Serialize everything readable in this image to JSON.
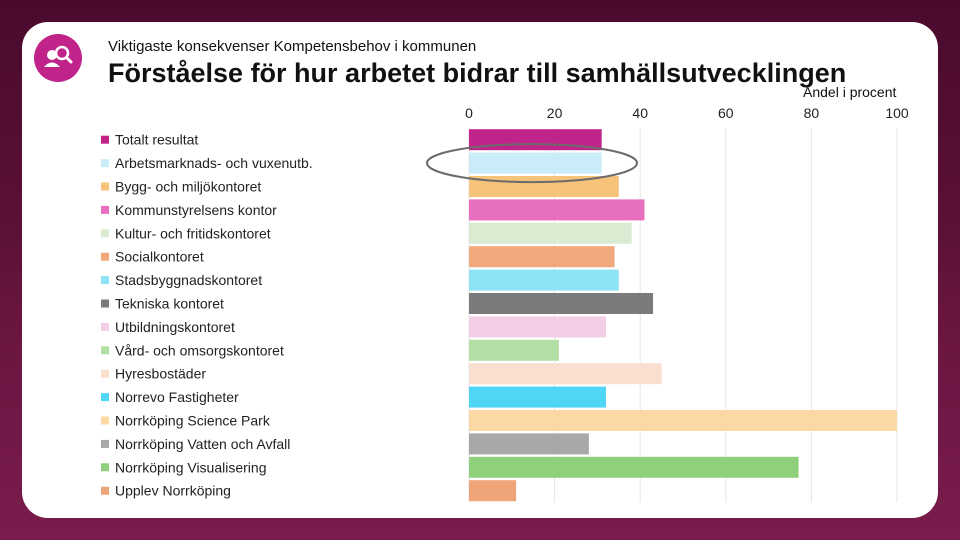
{
  "header": {
    "subtitle": "Viktigaste konsekvenser Kompetensbehov i kommunen",
    "title": "Förståelse för hur arbetet bidrar till samhällsutvecklingen",
    "logo_icon": "person-search-icon"
  },
  "colors": {
    "background": "#5a1036",
    "brand": "#c0248a"
  },
  "chart_data": {
    "type": "bar",
    "orientation": "horizontal",
    "title": "Förståelse för hur arbetet bidrar till samhällsutvecklingen",
    "xlabel": "Andel i procent",
    "ylabel": "",
    "xlim": [
      0,
      100
    ],
    "ticks": [
      0,
      20,
      40,
      60,
      80,
      100
    ],
    "grid": true,
    "legend_position": "left",
    "highlighted_category": "Arbetsmarknads- och vuxenutb.",
    "categories": [
      "Totalt resultat",
      "Arbetsmarknads- och vuxenutb.",
      "Bygg- och miljökontoret",
      "Kommunstyrelsens kontor",
      "Kultur- och fritidskontoret",
      "Socialkontoret",
      "Stadsbyggnadskontoret",
      "Tekniska kontoret",
      "Utbildningskontoret",
      "Vård- och omsorgskontoret",
      "Hyresbostäder",
      "Norrevo Fastigheter",
      "Norrköping Science Park",
      "Norrköping Vatten och Avfall",
      "Norrköping Visualisering",
      "Upplev Norrköping"
    ],
    "values": [
      31,
      31,
      35,
      41,
      38,
      34,
      35,
      43,
      32,
      21,
      45,
      32,
      100,
      28,
      77,
      11
    ],
    "colors": [
      "#c0248a",
      "#c9ecf8",
      "#f7c27a",
      "#e86fbd",
      "#d9ecd2",
      "#f1a97c",
      "#8fe3f7",
      "#7b7b7b",
      "#f4cde6",
      "#b2dfa4",
      "#f8dfd0",
      "#4fd6f5",
      "#fcd9a4",
      "#a8a8a8",
      "#8ed07c",
      "#f0a578"
    ]
  }
}
